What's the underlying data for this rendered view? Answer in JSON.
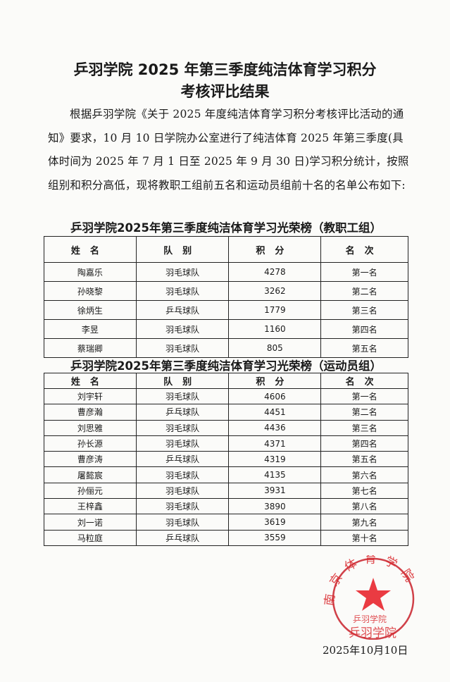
{
  "document": {
    "title_line1": "乒羽学院 2025 年第三季度纯洁体育学习积分",
    "title_line2": "考核评比结果",
    "paragraph": "根据乒羽学院《关于 2025 年度纯洁体育学习积分考核评比活动的通知》要求，10 月 10 日学院办公室进行了纯洁体育 2025 年第三季度(具体时间为 2025 年 7 月 1 日至 2025 年 9 月 30 日)学习积分统计，按照组别和积分高低，现将教职工组前五名和运动员组前十名的名单公布如下:",
    "date": "2025年10月10日"
  },
  "staff_table": {
    "title": "乒羽学院2025年第三季度纯洁体育学习光荣榜（教职工组）",
    "headers": [
      "姓名",
      "队别",
      "积分",
      "名次"
    ],
    "rows": [
      [
        "陶嘉乐",
        "羽毛球队",
        "4278",
        "第一名"
      ],
      [
        "孙晓黎",
        "羽毛球队",
        "3262",
        "第二名"
      ],
      [
        "徐炳生",
        "乒乓球队",
        "1779",
        "第三名"
      ],
      [
        "李昱",
        "羽毛球队",
        "1160",
        "第四名"
      ],
      [
        "蔡瑞卿",
        "羽毛球队",
        "805",
        "第五名"
      ]
    ]
  },
  "athlete_table": {
    "title": "乒羽学院2025年第三季度纯洁体育学习光荣榜（运动员组）",
    "headers": [
      "姓名",
      "队别",
      "积分",
      "名次"
    ],
    "rows": [
      [
        "刘宇轩",
        "羽毛球队",
        "4606",
        "第一名"
      ],
      [
        "曹彦瀚",
        "乒乓球队",
        "4451",
        "第二名"
      ],
      [
        "刘思雅",
        "羽毛球队",
        "4436",
        "第三名"
      ],
      [
        "孙长源",
        "羽毛球队",
        "4371",
        "第四名"
      ],
      [
        "曹彦涛",
        "乒乓球队",
        "4319",
        "第五名"
      ],
      [
        "屠懿宸",
        "羽毛球队",
        "4135",
        "第六名"
      ],
      [
        "孙俪元",
        "羽毛球队",
        "3931",
        "第七名"
      ],
      [
        "王梓鑫",
        "羽毛球队",
        "3890",
        "第八名"
      ],
      [
        "刘一诺",
        "羽毛球队",
        "3619",
        "第九名"
      ],
      [
        "马粒庭",
        "乒乓球队",
        "3559",
        "第十名"
      ]
    ]
  },
  "seal": {
    "arc_text": "南京体育学院",
    "inner_text": "乒羽学院",
    "bottom_text": "乒羽学院",
    "color": "#d9252a"
  }
}
